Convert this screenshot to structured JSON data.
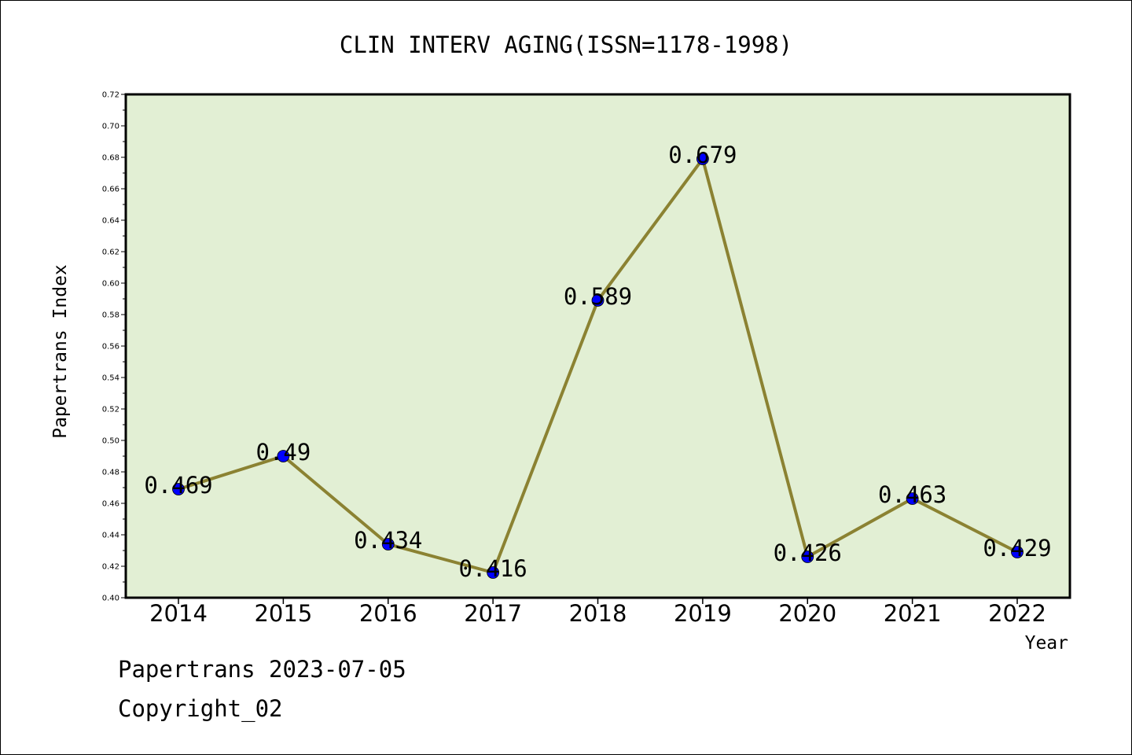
{
  "chart_data": {
    "type": "line",
    "title": "CLIN INTERV AGING(ISSN=1178-1998)",
    "xlabel": "Year",
    "ylabel": "Papertrans Index",
    "categories": [
      "2014",
      "2015",
      "2016",
      "2017",
      "2018",
      "2019",
      "2020",
      "2021",
      "2022"
    ],
    "values": [
      0.469,
      0.49,
      0.434,
      0.416,
      0.589,
      0.679,
      0.426,
      0.463,
      0.429
    ],
    "data_labels": [
      "0.469",
      "0.49",
      "0.434",
      "0.416",
      "0.589",
      "0.679",
      "0.426",
      "0.463",
      "0.429"
    ],
    "ylim": [
      0.4,
      0.72
    ],
    "y_ticks": [
      "0.40",
      "0.42",
      "0.44",
      "0.46",
      "0.48",
      "0.50",
      "0.52",
      "0.54",
      "0.56",
      "0.58",
      "0.60",
      "0.62",
      "0.64",
      "0.66",
      "0.68",
      "0.70",
      "0.72"
    ],
    "grid": false,
    "colors": {
      "plot_background": "#e2efd4",
      "line": "#8b8232",
      "marker": "#0000ff"
    }
  },
  "footer": {
    "date_line": "Papertrans 2023-07-05",
    "copyright": "Copyright_02"
  }
}
